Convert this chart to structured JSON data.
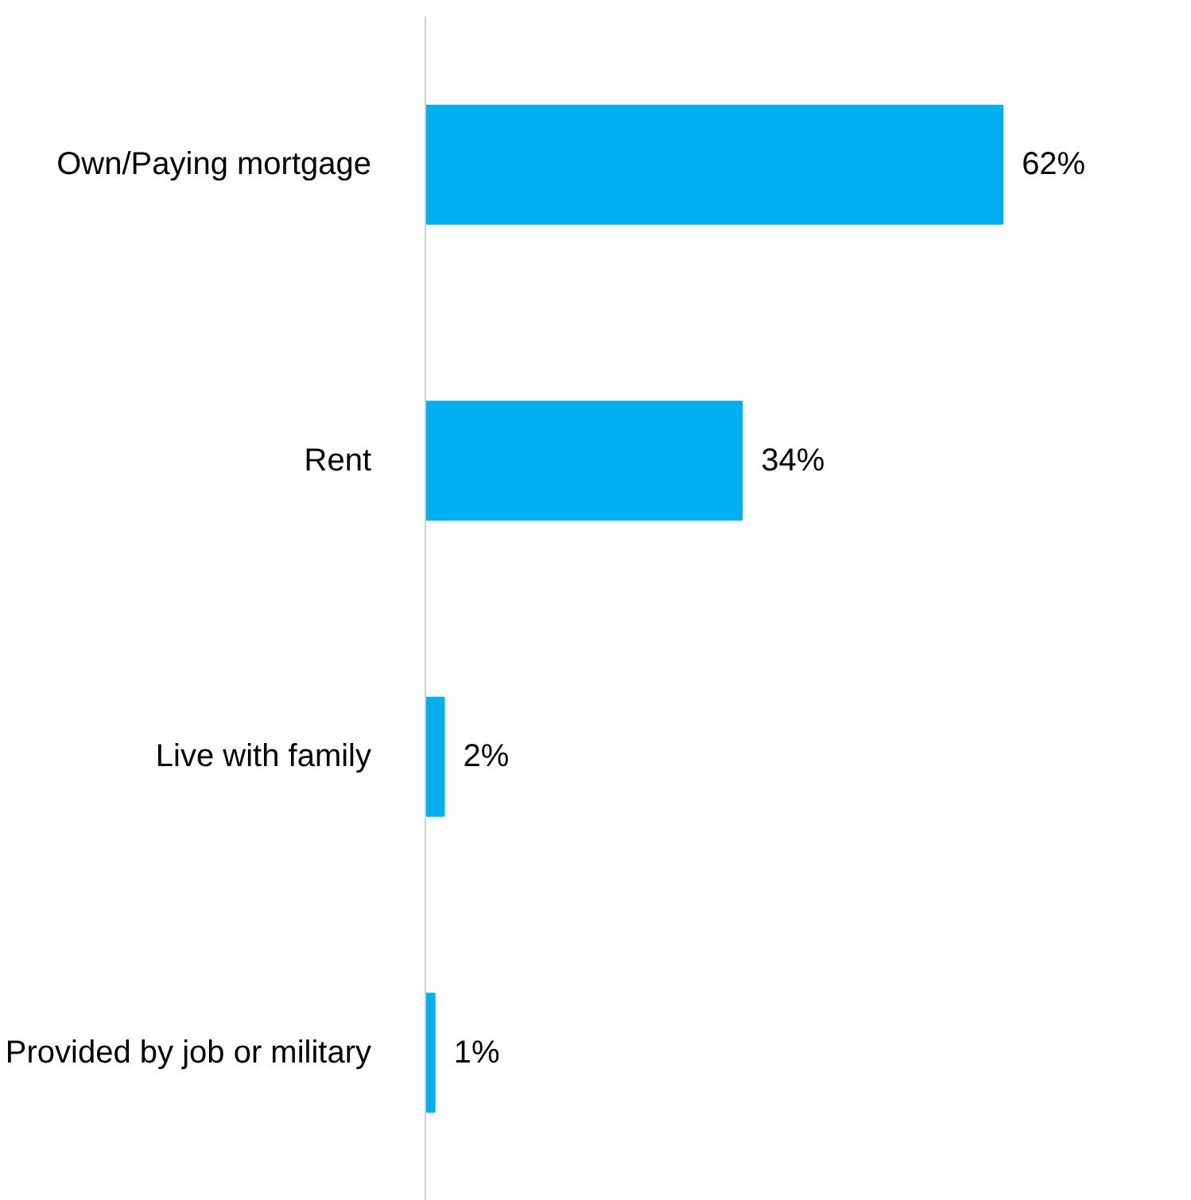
{
  "chart_data": {
    "type": "bar",
    "orientation": "horizontal",
    "categories": [
      "Own/Paying mortgage",
      "Rent",
      "Live with family",
      "Provided by job or military"
    ],
    "values": [
      62,
      34,
      2,
      1
    ],
    "value_labels": [
      "62%",
      "34%",
      "2%",
      "1%"
    ],
    "color": "#00b0f0",
    "tick_labels": "y",
    "grid": false
  }
}
